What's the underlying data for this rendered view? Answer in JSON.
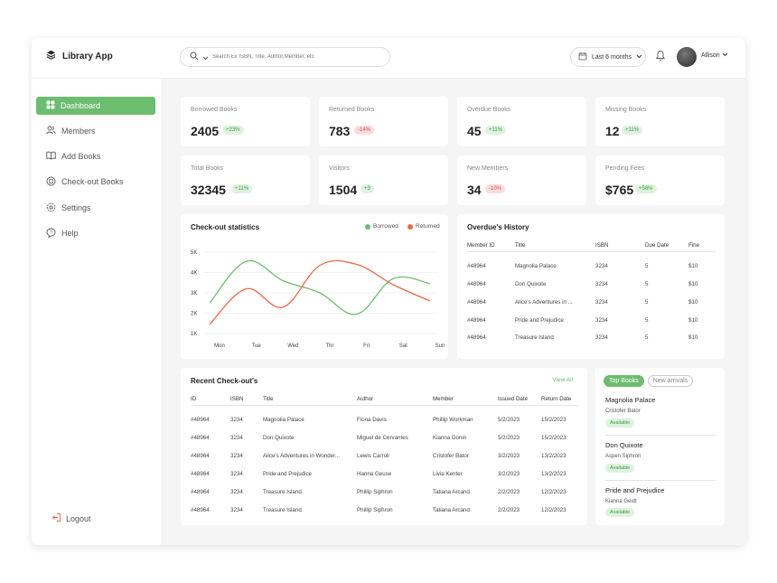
{
  "app": {
    "name": "Library App"
  },
  "search": {
    "placeholder": "Search Ex ISBN, Title, Author,Member, etc"
  },
  "header": {
    "period_label": "Last 6 months",
    "user_name": "Allison"
  },
  "sidebar": {
    "items": [
      {
        "label": "Dashboard",
        "icon": "grid-icon",
        "active": true
      },
      {
        "label": "Members",
        "icon": "users-icon",
        "active": false
      },
      {
        "label": "Add Books",
        "icon": "book-open-icon",
        "active": false
      },
      {
        "label": "Check-out Books",
        "icon": "checkout-icon",
        "active": false
      },
      {
        "label": "Settings",
        "icon": "gear-icon",
        "active": false
      },
      {
        "label": "Help",
        "icon": "help-icon",
        "active": false
      }
    ],
    "logout_label": "Logout"
  },
  "stats": [
    {
      "label": "Borrowed Books",
      "value": "2405",
      "change": "+23%",
      "trend": "up"
    },
    {
      "label": "Returned Books",
      "value": "783",
      "change": "-14%",
      "trend": "down"
    },
    {
      "label": "Overdue Books",
      "value": "45",
      "change": "+11%",
      "trend": "up"
    },
    {
      "label": "Missing Books",
      "value": "12",
      "change": "+11%",
      "trend": "up"
    },
    {
      "label": "Total Books",
      "value": "32345",
      "change": "+11%",
      "trend": "up"
    },
    {
      "label": "Visitors",
      "value": "1504",
      "change": "+3",
      "trend": "up"
    },
    {
      "label": "New Members",
      "value": "34",
      "change": "-10%",
      "trend": "down"
    },
    {
      "label": "Pending Fees",
      "value": "$765",
      "change": "+56%",
      "trend": "up"
    }
  ],
  "colors": {
    "accent": "#6cbd6f",
    "returned": "#e8684a",
    "borrowed": "#6cbd6f"
  },
  "checkout_stats": {
    "title": "Check-out statistics"
  },
  "chart_data": {
    "type": "line",
    "title": "Check-out statistics",
    "categories": [
      "Mon",
      "Tue",
      "Wed",
      "Thr",
      "Fri",
      "Sat",
      "Sun"
    ],
    "y_ticks": [
      "5K",
      "4K",
      "3K",
      "2K",
      "1K"
    ],
    "ylim": [
      1000,
      5000
    ],
    "legend_position": "top-right",
    "grid": true,
    "series": [
      {
        "name": "Borrowed",
        "color": "#6cbd6f",
        "values": [
          2500,
          4550,
          3600,
          3000,
          1950,
          3700,
          3450
        ]
      },
      {
        "name": "Returned",
        "color": "#e8684a",
        "values": [
          1450,
          3200,
          2300,
          4350,
          4400,
          3400,
          2600
        ]
      }
    ]
  },
  "overdue": {
    "title": "Overdue's History",
    "headers": [
      "Member ID",
      "Title",
      "ISBN",
      "Due Date",
      "Fine"
    ],
    "rows": [
      [
        "#48964",
        "Magnolia Palace",
        "3234",
        "5",
        "$10"
      ],
      [
        "#48964",
        "Don Quixote",
        "3234",
        "5",
        "$10"
      ],
      [
        "#48964",
        "Alice's Adventures in ...",
        "3234",
        "5",
        "$10"
      ],
      [
        "#48964",
        "Pride and Prejudice",
        "3234",
        "5",
        "$10"
      ],
      [
        "#48964",
        "Treasure Island",
        "3234",
        "5",
        "$10"
      ]
    ]
  },
  "recent": {
    "title": "Recent Check-out's",
    "view_all": "View All",
    "headers": [
      "ID",
      "ISBN",
      "Title",
      "Author",
      "Member",
      "Issued Date",
      "Return Date"
    ],
    "rows": [
      [
        "#48964",
        "3234",
        "Magnolia Palace",
        "Fiona Davis",
        "Phillip Workman",
        "5/2/2023",
        "15/2/2023"
      ],
      [
        "#48964",
        "3234",
        "Don Quixote",
        "Miguel de Cervantes",
        "Kianna Donin",
        "5/2/2023",
        "15/2/2023"
      ],
      [
        "#48964",
        "3234",
        "Alice's Adventures in Wonder...",
        "Lewis Carroll",
        "Cristofer Bator",
        "3/2/2023",
        "13/2/2023"
      ],
      [
        "#48964",
        "3234",
        "Pride and Prejudice",
        "Hanna Geuse",
        "Livia Kenter",
        "3/2/2023",
        "13/2/2023"
      ],
      [
        "#48964",
        "3234",
        "Treasure Island",
        "Phillip Siphron",
        "Tatiana Arcand",
        "2/2/2023",
        "12/2/2023"
      ],
      [
        "#48964",
        "3234",
        "Treasure Island",
        "Phillip Siphron",
        "Tatiana Arcand",
        "2/2/2023",
        "12/2/2023"
      ]
    ]
  },
  "top_books": {
    "tabs": [
      "Top Books",
      "New arrivals"
    ],
    "items": [
      {
        "title": "Magnolia Palace",
        "author": "Cristofer Bator",
        "status": "Available"
      },
      {
        "title": "Don Quixote",
        "author": "Aspen Siphron",
        "status": "Available"
      },
      {
        "title": "Pride and Prejudice",
        "author": "Kianna Geidt",
        "status": "Available"
      }
    ]
  }
}
